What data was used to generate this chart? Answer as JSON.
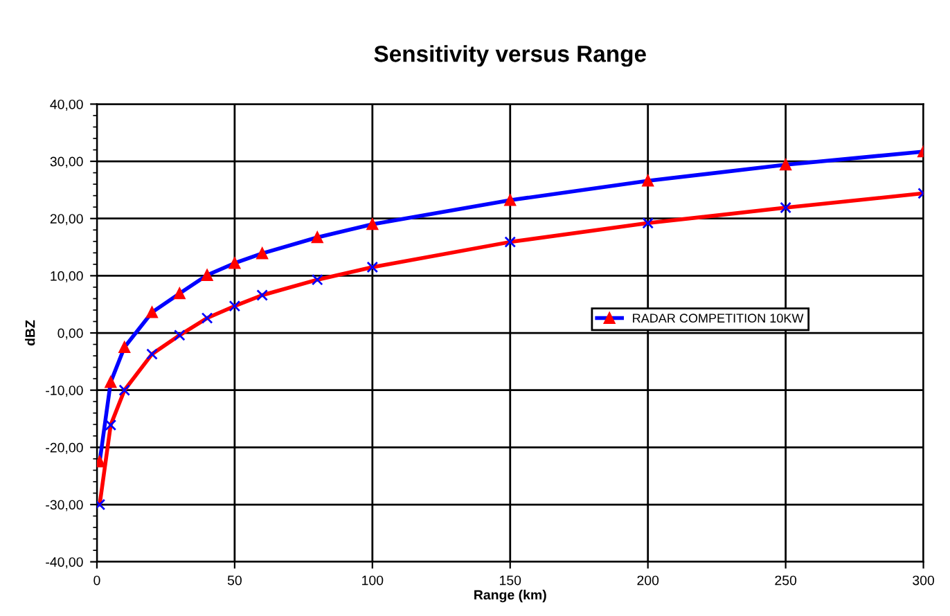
{
  "chart_data": {
    "type": "line",
    "title": "Sensitivity versus Range",
    "xlabel": "Range (km)",
    "ylabel": "dBZ",
    "xlim": [
      0,
      300
    ],
    "xticks": [
      0,
      50,
      100,
      150,
      200,
      250,
      300
    ],
    "ylim": [
      -40,
      40
    ],
    "yticks": [
      {
        "value": -40,
        "label": "-40,00"
      },
      {
        "value": -30,
        "label": "-30,00"
      },
      {
        "value": -20,
        "label": "-20,00"
      },
      {
        "value": -10,
        "label": "-10,00"
      },
      {
        "value": 0,
        "label": "0,00"
      },
      {
        "value": 10,
        "label": "10,00"
      },
      {
        "value": 20,
        "label": "20,00"
      },
      {
        "value": 30,
        "label": "30,00"
      },
      {
        "value": 40,
        "label": "40,00"
      }
    ],
    "grid": true,
    "legend": "center",
    "series": [
      {
        "color": "#ff0000",
        "marker": "cross",
        "x": [
          1,
          5,
          10,
          20,
          30,
          40,
          50,
          60,
          80,
          100,
          150,
          200,
          250,
          300
        ],
        "values": [
          -30.0,
          -16.1,
          -10.0,
          -3.7,
          -0.4,
          2.6,
          4.7,
          6.6,
          9.3,
          11.5,
          15.9,
          19.2,
          21.9,
          24.4
        ]
      },
      {
        "name": "RADAR COMPETITION 10KW",
        "color": "#0000ff",
        "marker": "triangle",
        "x": [
          1,
          5,
          10,
          20,
          30,
          40,
          50,
          60,
          80,
          100,
          150,
          200,
          250,
          300
        ],
        "values": [
          -22.5,
          -8.6,
          -2.5,
          3.6,
          6.9,
          10.1,
          12.2,
          13.9,
          16.7,
          19.0,
          23.2,
          26.6,
          29.4,
          31.7
        ]
      }
    ]
  }
}
